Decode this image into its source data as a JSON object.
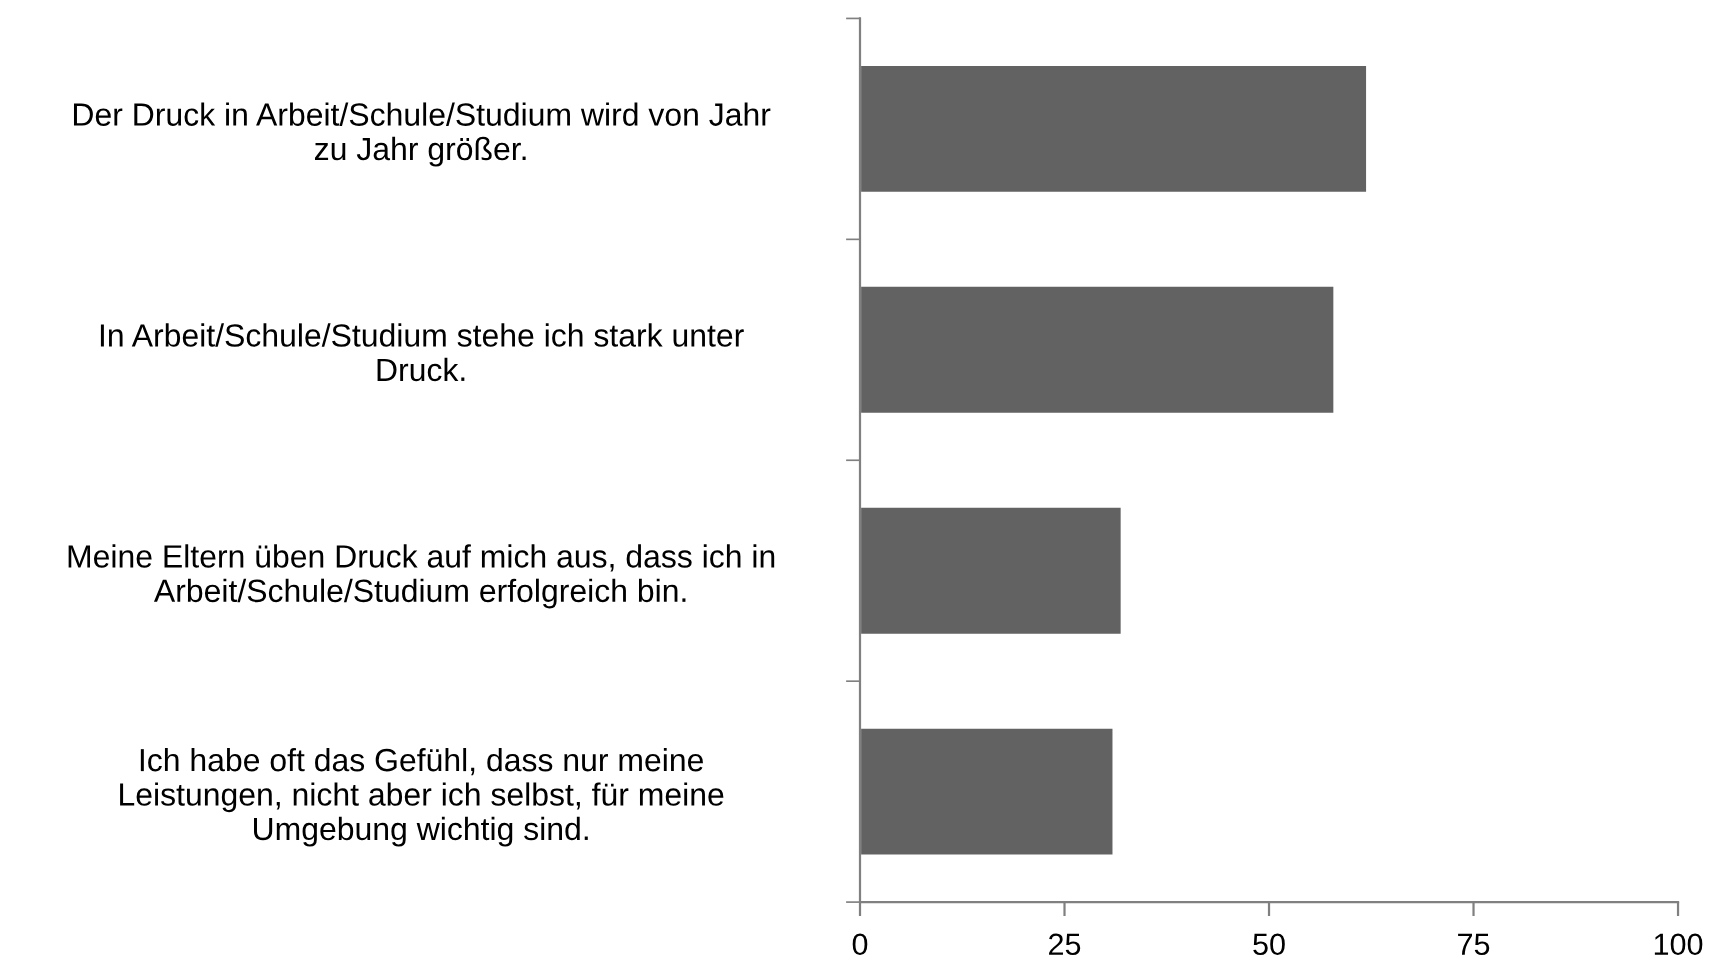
{
  "chart_data": {
    "type": "bar",
    "orientation": "horizontal",
    "categories": [
      "Der Druck in Arbeit/Schule/Studium wird von Jahr\nzu Jahr größer.",
      "In Arbeit/Schule/Studium stehe ich stark unter\nDruck.",
      "Meine Eltern üben Druck auf mich aus, dass ich in\nArbeit/Schule/Studium erfolgreich bin.",
      "Ich habe oft das Gefühl, dass nur meine\nLeistungen, nicht aber ich selbst, für meine\nUmgebung wichtig sind."
    ],
    "values": [
      62,
      58,
      32,
      31
    ],
    "color": "#626262",
    "xlim": [
      0,
      100
    ],
    "xticks": [
      0,
      25,
      50,
      75,
      100
    ],
    "grid": false,
    "legend": false
  }
}
